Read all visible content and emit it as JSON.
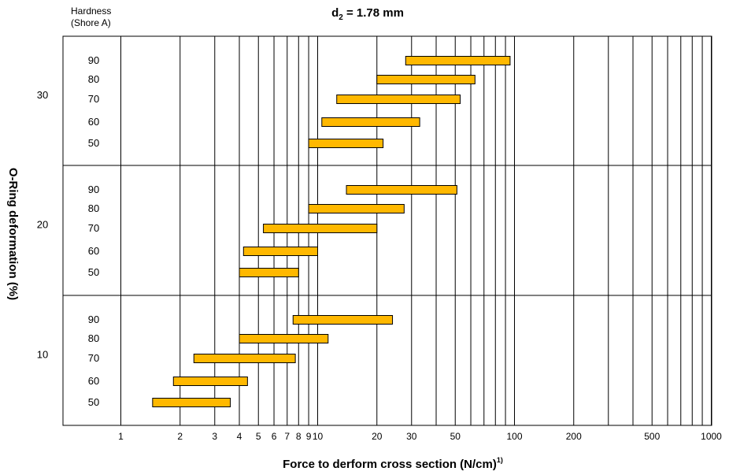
{
  "chart_data": {
    "type": "bar",
    "orientation": "horizontal-range",
    "title_prefix": "d",
    "title_subscript": "2",
    "title_suffix": " = 1.78 mm",
    "hardness_label_line1": "Hardness",
    "hardness_label_line2": "(Shore A)",
    "ylabel": "O-Ring deformation (%)",
    "xlabel": "Force to derform cross section (N/cm)",
    "xlabel_superscript": "1)",
    "x_scale": "log",
    "xlim": [
      1,
      1000
    ],
    "x_ticks": [
      1,
      2,
      3,
      4,
      5,
      6,
      7,
      8,
      9,
      10,
      20,
      30,
      50,
      100,
      200,
      500,
      1000
    ],
    "x_tick_labels": [
      "1",
      "2",
      "3",
      "4",
      "5",
      "6",
      "7",
      "8",
      "9",
      "10",
      "20",
      "30",
      "50",
      "100",
      "200",
      "500",
      "1000"
    ],
    "x_gridlines": [
      1,
      2,
      3,
      4,
      5,
      6,
      7,
      8,
      9,
      10,
      20,
      30,
      40,
      50,
      60,
      70,
      80,
      90,
      100,
      200,
      300,
      400,
      500,
      600,
      700,
      800,
      900,
      1000
    ],
    "grid": true,
    "bar_color": "#FFB800",
    "bar_edge_color": "#000000",
    "groups": [
      {
        "deformation": "30",
        "bars": [
          {
            "hardness": "90",
            "min": 28,
            "max": 95
          },
          {
            "hardness": "80",
            "min": 20,
            "max": 63
          },
          {
            "hardness": "70",
            "min": 12.5,
            "max": 53
          },
          {
            "hardness": "60",
            "min": 10.5,
            "max": 33
          },
          {
            "hardness": "50",
            "min": 9,
            "max": 21.5
          }
        ]
      },
      {
        "deformation": "20",
        "bars": [
          {
            "hardness": "90",
            "min": 14,
            "max": 51
          },
          {
            "hardness": "80",
            "min": 9,
            "max": 27.5
          },
          {
            "hardness": "70",
            "min": 5.3,
            "max": 20
          },
          {
            "hardness": "60",
            "min": 4.2,
            "max": 10
          },
          {
            "hardness": "50",
            "min": 4,
            "max": 8
          }
        ]
      },
      {
        "deformation": "10",
        "bars": [
          {
            "hardness": "90",
            "min": 7.5,
            "max": 24
          },
          {
            "hardness": "80",
            "min": 4,
            "max": 11.3
          },
          {
            "hardness": "70",
            "min": 2.35,
            "max": 7.7
          },
          {
            "hardness": "60",
            "min": 1.85,
            "max": 4.4
          },
          {
            "hardness": "50",
            "min": 1.45,
            "max": 3.6
          }
        ]
      }
    ]
  }
}
